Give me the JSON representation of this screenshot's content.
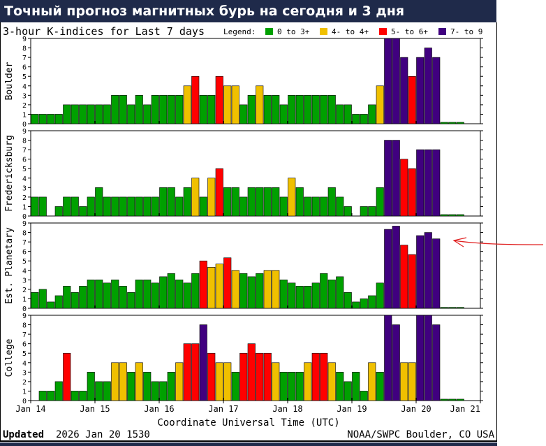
{
  "page_title": "Точный прогноз магнитных бурь на сегодня и 3 дня",
  "chart_title": "3-hour K-indices for Last 7 days",
  "legend": {
    "label": "Legend:",
    "items": [
      {
        "text": "0 to 3+",
        "color": "#00a000"
      },
      {
        "text": "4- to 4+",
        "color": "#f0c000"
      },
      {
        "text": "5- to 6+",
        "color": "#ff0000"
      },
      {
        "text": "7- to 9",
        "color": "#40007f"
      }
    ]
  },
  "footer": {
    "updated_label": "Updated",
    "updated_value": "2026 Jan 20 1530",
    "xlabel": "Coordinate Universal Time (UTC)",
    "credit": "NOAA/SWPC Boulder, CO USA"
  },
  "chart_data": {
    "type": "bar",
    "title": "3-hour K-indices for Last 7 days",
    "xlabel": "Coordinate Universal Time (UTC)",
    "x_ticks": [
      "Jan 14",
      "Jan 15",
      "Jan 16",
      "Jan 17",
      "Jan 18",
      "Jan 19",
      "Jan 20",
      "Jan 21"
    ],
    "ylim": [
      0,
      9
    ],
    "y_ticks": [
      0,
      1,
      2,
      3,
      4,
      5,
      6,
      7,
      8,
      9
    ],
    "grid": false,
    "intervals_per_day": 8,
    "color_scale": [
      {
        "max": 3.9,
        "color": "#00a000"
      },
      {
        "max": 4.9,
        "color": "#f0c000"
      },
      {
        "max": 6.9,
        "color": "#ff0000"
      },
      {
        "max": 9,
        "color": "#40007f"
      }
    ],
    "panels": [
      {
        "name": "Boulder",
        "values": [
          1,
          1,
          1,
          1,
          2,
          2,
          2,
          2,
          2,
          2,
          3,
          3,
          2,
          3,
          2,
          3,
          3,
          3,
          3,
          4,
          5,
          3,
          3,
          5,
          4,
          4,
          2,
          3,
          4,
          3,
          3,
          2,
          3,
          3,
          3,
          3,
          3,
          3,
          2,
          2,
          1,
          1,
          2,
          4,
          9,
          9,
          7,
          5,
          7,
          8,
          7,
          0.15,
          0.15,
          0.15
        ]
      },
      {
        "name": "Fredericksburg",
        "values": [
          2,
          2,
          0,
          1,
          2,
          2,
          1,
          2,
          3,
          2,
          2,
          2,
          2,
          2,
          2,
          2,
          3,
          3,
          2,
          3,
          4,
          2,
          4,
          5,
          3,
          3,
          2,
          3,
          3,
          3,
          3,
          2,
          4,
          3,
          2,
          2,
          2,
          3,
          2,
          1,
          0,
          1,
          1,
          3,
          8,
          8,
          6,
          5,
          7,
          7,
          7,
          0.15,
          0.15,
          0.15
        ]
      },
      {
        "name": "Est. Planetary",
        "values": [
          1.67,
          2,
          0.67,
          1.33,
          2.33,
          1.67,
          2.33,
          3,
          3,
          2.67,
          3,
          2.33,
          1.67,
          3,
          3,
          2.67,
          3.33,
          3.67,
          3,
          2.67,
          3.67,
          5,
          4.33,
          4.67,
          5.33,
          4,
          3.67,
          3.33,
          3.67,
          4,
          4,
          3,
          2.67,
          2.33,
          2.33,
          2.67,
          3.67,
          3,
          3.33,
          1.67,
          0.67,
          1,
          1.33,
          2.67,
          8.33,
          8.67,
          6.67,
          5.67,
          7.67,
          8,
          7.33,
          0.1,
          0.1,
          0.1
        ]
      },
      {
        "name": "College",
        "values": [
          0,
          1,
          1,
          2,
          5,
          1,
          1,
          3,
          2,
          2,
          4,
          4,
          3,
          4,
          3,
          2,
          2,
          3,
          4,
          6,
          6,
          8,
          5,
          4,
          4,
          3,
          5,
          6,
          5,
          5,
          4,
          3,
          3,
          3,
          4,
          5,
          5,
          4,
          3,
          2,
          3,
          1,
          4,
          3,
          9,
          8,
          4,
          4,
          9,
          9,
          8,
          0.15,
          0.15,
          0.15
        ]
      }
    ]
  },
  "annotation": "hand-drawn red arrow"
}
